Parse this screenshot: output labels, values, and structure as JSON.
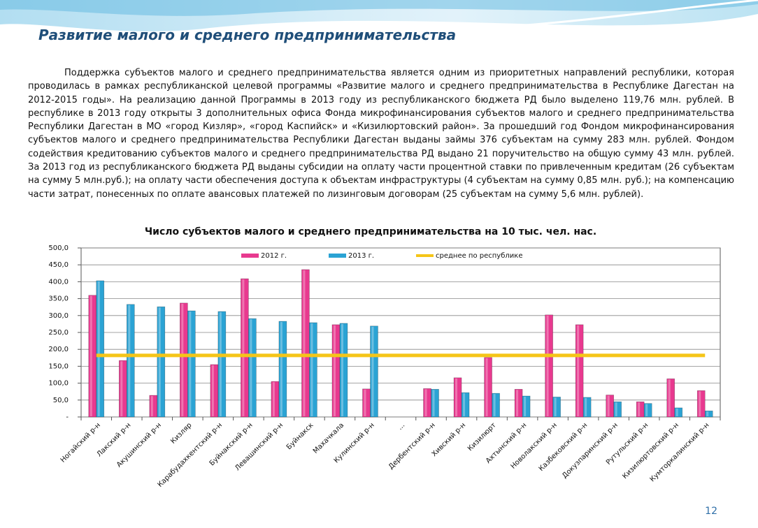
{
  "header": {
    "title": "Развитие малого и среднего предпринимательства"
  },
  "body": {
    "paragraph": "Поддержка субъектов малого и среднего предпринимательства является одним из приоритетных направлений республики, которая проводилась в рамках республиканской целевой программы «Развитие малого и среднего предпринимательства в Республике Дагестан на 2012-2015 годы». На реализацию данной Программы в 2013 году из республиканского бюджета РД было выделено 119,76 млн. рублей. В республике в 2013 году открыты 3 дополнительных офиса Фонда микрофинансирования субъектов малого и среднего предпринимательства Республики Дагестан в МО «город Кизляр», «город Каспийск» и «Кизилюртовский район». За прошедший год Фондом микрофинансирования субъектов малого и среднего предпринимательства Республики Дагестан выданы займы 376 субъектам на сумму 283 млн. рублей. Фондом содействия кредитованию субъектов малого и среднего предпринимательства РД выдано 21 поручительство на общую сумму 43 млн. рублей. За 2013 год из республиканского бюджета РД выданы субсидии на оплату части процентной ставки по привлеченным кредитам (26 субъектам на сумму 5 млн.руб.); на оплату части обеспечения доступа к объектам инфраструктуры (4 субъектам на сумму 0,85 млн. руб.); на компенсацию части затрат, понесенных по оплате авансовых платежей по лизинговым договорам (25 субъектам на сумму 5,6 млн. рублей)."
  },
  "chart_data": {
    "type": "bar",
    "title": "Число субъектов малого и среднего предпринимательства на 10 тыс. чел. нас.",
    "categories": [
      "Ногайский р-н",
      "Лакский р-н",
      "Акушинский р-н",
      "Кизляр",
      "Карабудахкентский р-н",
      "Буйнакский р-н",
      "Левашинский р-н",
      "Буйнакск",
      "Махачкала",
      "Кулинский р-н",
      "...",
      "Дербентский р-н",
      "Хивский р-н",
      "Кизилюрт",
      "Ахтынский р-н",
      "Новолакский р-н",
      "Казбековский р-н",
      "Докузпаринский р-н",
      "Рутульский р-н",
      "Кизилюртовский р-н",
      "Кумторкалинский р-н"
    ],
    "series": [
      {
        "name": "2012 г.",
        "type": "bar",
        "color": "#e8398f",
        "values": [
          360,
          167,
          64,
          337,
          155,
          409,
          105,
          436,
          273,
          83,
          null,
          84,
          116,
          176,
          82,
          302,
          273,
          65,
          45,
          113,
          78
        ]
      },
      {
        "name": "2013 г.",
        "type": "bar",
        "color": "#2ba3d4",
        "values": [
          403,
          333,
          326,
          314,
          312,
          291,
          283,
          279,
          277,
          269,
          null,
          82,
          72,
          70,
          62,
          59,
          58,
          45,
          40,
          27,
          18
        ]
      },
      {
        "name": "среднее по республике",
        "type": "line",
        "color": "#f5c518",
        "values": [
          182,
          182,
          182,
          182,
          182,
          182,
          182,
          182,
          182,
          182,
          182,
          182,
          182,
          182,
          182,
          182,
          182,
          182,
          182,
          182,
          182
        ]
      }
    ],
    "ylim": [
      0,
      500
    ],
    "yticks": [
      {
        "value": 0,
        "label": "-"
      },
      {
        "value": 50,
        "label": "50,0"
      },
      {
        "value": 100,
        "label": "100,0"
      },
      {
        "value": 150,
        "label": "150,0"
      },
      {
        "value": 200,
        "label": "200,0"
      },
      {
        "value": 250,
        "label": "250,0"
      },
      {
        "value": 300,
        "label": "300,0"
      },
      {
        "value": 350,
        "label": "350,0"
      },
      {
        "value": 400,
        "label": "400,0"
      },
      {
        "value": 450,
        "label": "450,0"
      },
      {
        "value": 500,
        "label": "500,0"
      }
    ],
    "grid": true
  },
  "page_number": "12"
}
